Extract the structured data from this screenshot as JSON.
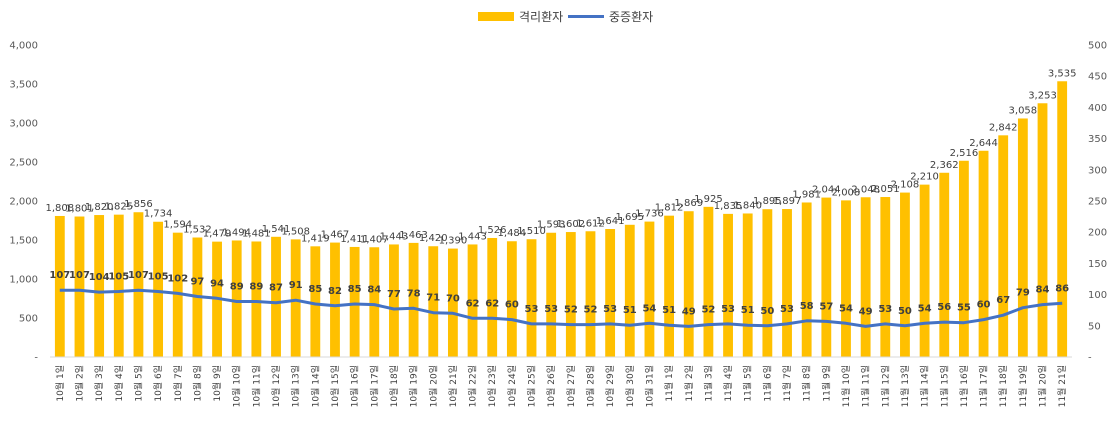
{
  "chart_data": {
    "type": "bar",
    "categories": [
      "10월 1일",
      "10월 2일",
      "10월 3일",
      "10월 4일",
      "10월 5일",
      "10월 6일",
      "10월 7일",
      "10월 8일",
      "10월 9일",
      "10월 10일",
      "10월 11일",
      "10월 12일",
      "10월 13일",
      "10월 14일",
      "10월 15일",
      "10월 16일",
      "10월 17일",
      "10월 18일",
      "10월 19일",
      "10월 20일",
      "10월 21일",
      "10월 22일",
      "10월 23일",
      "10월 24일",
      "10월 25일",
      "10월 26일",
      "10월 27일",
      "10월 28일",
      "10월 29일",
      "10월 30일",
      "10월 31일",
      "11월 1일",
      "11월 2일",
      "11월 3일",
      "11월 4일",
      "11월 5일",
      "11월 6일",
      "11월 7일",
      "11월 8일",
      "11월 9일",
      "11월 10일",
      "11월 11일",
      "11월 12일",
      "11월 13일",
      "11월 14일",
      "11월 15일",
      "11월 16일",
      "11월 17일",
      "11월 18일",
      "11월 19일",
      "11월 20일",
      "11월 21일"
    ],
    "series": [
      {
        "name": "격리환자",
        "type": "bar",
        "axis": "left",
        "color": "#FFC000",
        "values": [
          1808,
          1801,
          1820,
          1825,
          1856,
          1734,
          1594,
          1532,
          1479,
          1494,
          1481,
          1541,
          1508,
          1419,
          1467,
          1411,
          1407,
          1443,
          1463,
          1420,
          1390,
          1443,
          1526,
          1484,
          1510,
          1593,
          1602,
          1612,
          1641,
          1695,
          1736,
          1812,
          1869,
          1925,
          1835,
          1840,
          1895,
          1897,
          1981,
          2044,
          2008,
          2048,
          2051,
          2108,
          2210,
          2362,
          2516,
          2644,
          2842,
          3058,
          3253,
          3535
        ],
        "labels": [
          "1,808",
          "1,801",
          "1,820",
          "1,825",
          "1,856",
          "1,734",
          "1,594",
          "1,532",
          "1,479",
          "1,494",
          "1,481",
          "1,541",
          "1,508",
          "1,419",
          "1,467",
          "1,411",
          "1,407",
          "1,443",
          "1,463",
          "1,420",
          "1,390",
          "1,443",
          "1,526",
          "1,484",
          "1,510",
          "1,593",
          "1,602",
          "1,612",
          "1,641",
          "1,695",
          "1,736",
          "1,812",
          "1,869",
          "1,925",
          "1,835",
          "1,840",
          "1,895",
          "1,897",
          "1,981",
          "2,044",
          "2,008",
          "2,048",
          "2,051",
          "2,108",
          "2,210",
          "2,362",
          "2,516",
          "2,644",
          "2,842",
          "3,058",
          "3,253",
          "3,535"
        ]
      },
      {
        "name": "중증환자",
        "type": "line",
        "axis": "right",
        "color": "#4472C4",
        "values": [
          107,
          107,
          104,
          105,
          107,
          105,
          102,
          97,
          94,
          89,
          89,
          87,
          91,
          85,
          82,
          85,
          84,
          77,
          78,
          71,
          70,
          62,
          62,
          60,
          53,
          53,
          52,
          52,
          53,
          51,
          54,
          51,
          49,
          52,
          53,
          51,
          50,
          53,
          58,
          57,
          54,
          49,
          53,
          50,
          54,
          56,
          55,
          60,
          67,
          79,
          84,
          86
        ]
      }
    ],
    "y_left": {
      "ylim": [
        0,
        4000
      ],
      "ticks": [
        0,
        500,
        1000,
        1500,
        2000,
        2500,
        3000,
        3500,
        4000
      ],
      "tick_labels": [
        "-",
        "500",
        "1,000",
        "1,500",
        "2,000",
        "2,500",
        "3,000",
        "3,500",
        "4,000"
      ]
    },
    "y_right": {
      "ylim": [
        0,
        500
      ],
      "ticks": [
        0,
        50,
        100,
        150,
        200,
        250,
        300,
        350,
        400,
        450,
        500
      ],
      "tick_labels": [
        "-",
        "50",
        "100",
        "150",
        "200",
        "250",
        "300",
        "350",
        "400",
        "450",
        "500"
      ]
    },
    "legend_position": "top-center",
    "grid": false
  }
}
